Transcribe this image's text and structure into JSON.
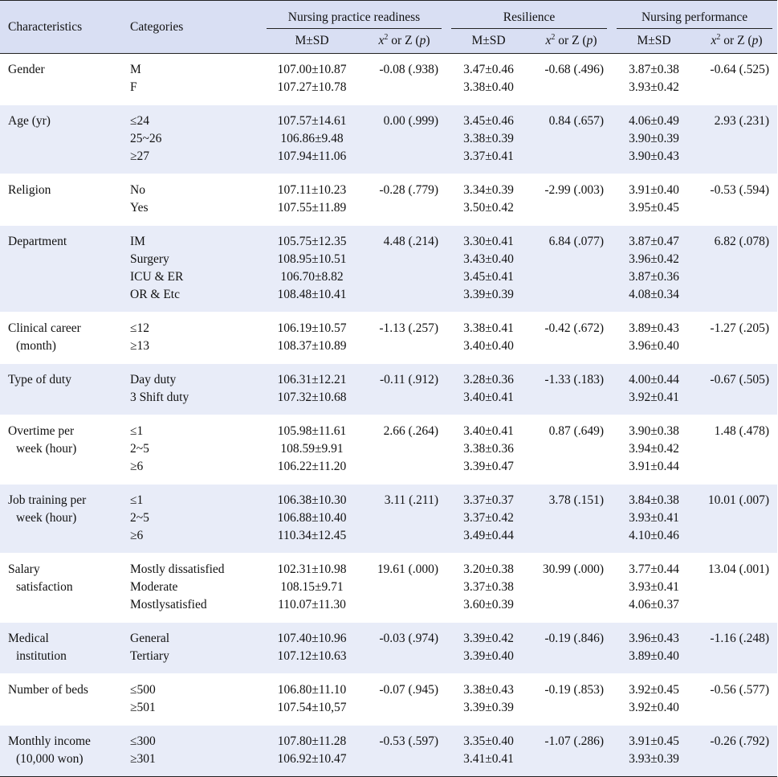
{
  "header": {
    "characteristics": "Characteristics",
    "categories": "Categories",
    "groups": [
      "Nursing practice readiness",
      "Resilience",
      "Nursing performance"
    ],
    "msd": "M±SD",
    "stat": "x² or Z (p)"
  },
  "rows": [
    {
      "char": [
        "Gender"
      ],
      "cats": [
        "M",
        "F"
      ],
      "npr": [
        "107.00±10.87",
        "107.27±10.78"
      ],
      "npr_stat": "-0.08 (.938)",
      "res": [
        "3.47±0.46",
        "3.38±0.40"
      ],
      "res_stat": "-0.68 (.496)",
      "np": [
        "3.87±0.38",
        "3.93±0.42"
      ],
      "np_stat": "-0.64 (.525)"
    },
    {
      "char": [
        "Age (yr)"
      ],
      "cats": [
        "≤24",
        "25~26",
        "≥27"
      ],
      "npr": [
        "107.57±14.61",
        "106.86±9.48",
        "107.94±11.06"
      ],
      "npr_stat": "0.00 (.999)",
      "res": [
        "3.45±0.46",
        "3.38±0.39",
        "3.37±0.41"
      ],
      "res_stat": "0.84 (.657)",
      "np": [
        "4.06±0.49",
        "3.90±0.39",
        "3.90±0.43"
      ],
      "np_stat": "2.93 (.231)"
    },
    {
      "char": [
        "Religion"
      ],
      "cats": [
        "No",
        "Yes"
      ],
      "npr": [
        "107.11±10.23",
        "107.55±11.89"
      ],
      "npr_stat": "-0.28 (.779)",
      "res": [
        "3.34±0.39",
        "3.50±0.42"
      ],
      "res_stat": "-2.99 (.003)",
      "np": [
        "3.91±0.40",
        "3.95±0.45"
      ],
      "np_stat": "-0.53 (.594)"
    },
    {
      "char": [
        "Department"
      ],
      "cats": [
        "IM",
        "Surgery",
        "ICU & ER",
        "OR & Etc"
      ],
      "npr": [
        "105.75±12.35",
        "108.95±10.51",
        "106.70±8.82",
        "108.48±10.41"
      ],
      "npr_stat": "4.48 (.214)",
      "res": [
        "3.30±0.41",
        "3.43±0.40",
        "3.45±0.41",
        "3.39±0.39"
      ],
      "res_stat": "6.84 (.077)",
      "np": [
        "3.87±0.47",
        "3.96±0.42",
        "3.87±0.36",
        "4.08±0.34"
      ],
      "np_stat": "6.82 (.078)"
    },
    {
      "char": [
        "Clinical career",
        " (month)"
      ],
      "cats": [
        "≤12",
        "≥13"
      ],
      "npr": [
        "106.19±10.57",
        "108.37±10.89"
      ],
      "npr_stat": "-1.13 (.257)",
      "res": [
        "3.38±0.41",
        "3.40±0.40"
      ],
      "res_stat": "-0.42 (.672)",
      "np": [
        "3.89±0.43",
        "3.96±0.40"
      ],
      "np_stat": "-1.27 (.205)"
    },
    {
      "char": [
        "Type of duty"
      ],
      "cats": [
        "Day duty",
        "3 Shift duty"
      ],
      "npr": [
        "106.31±12.21",
        "107.32±10.68"
      ],
      "npr_stat": "-0.11 (.912)",
      "res": [
        "3.28±0.36",
        "3.40±0.41"
      ],
      "res_stat": "-1.33 (.183)",
      "np": [
        "4.00±0.44",
        "3.92±0.41"
      ],
      "np_stat": "-0.67 (.505)"
    },
    {
      "char": [
        "Overtime per",
        "  week (hour)"
      ],
      "cats": [
        "≤1",
        "2~5",
        "≥6"
      ],
      "npr": [
        "105.98±11.61",
        "108.59±9.91",
        "106.22±11.20"
      ],
      "npr_stat": "2.66 (.264)",
      "res": [
        "3.40±0.41",
        "3.38±0.36",
        "3.39±0.47"
      ],
      "res_stat": "0.87 (.649)",
      "np": [
        "3.90±0.38",
        "3.94±0.42",
        "3.91±0.44"
      ],
      "np_stat": "1.48 (.478)"
    },
    {
      "char": [
        "Job training per",
        "  week (hour)"
      ],
      "cats": [
        "≤1",
        "2~5",
        "≥6"
      ],
      "npr": [
        "106.38±10.30",
        "106.88±10.40",
        "110.34±12.45"
      ],
      "npr_stat": "3.11 (.211)",
      "res": [
        "3.37±0.37",
        "3.37±0.42",
        "3.49±0.44"
      ],
      "res_stat": "3.78 (.151)",
      "np": [
        "3.84±0.38",
        "3.93±0.41",
        "4.10±0.46"
      ],
      "np_stat": "10.01 (.007)"
    },
    {
      "char": [
        "Salary",
        "  satisfaction"
      ],
      "cats": [
        "Mostly dissatisfied",
        "Moderate",
        "Mostlysatisfied"
      ],
      "npr": [
        "102.31±10.98",
        "108.15±9.71",
        "110.07±11.30"
      ],
      "npr_stat": "19.61 (.000)",
      "res": [
        "3.20±0.38",
        "3.37±0.38",
        "3.60±0.39"
      ],
      "res_stat": "30.99 (.000)",
      "np": [
        "3.77±0.44",
        "3.93±0.41",
        "4.06±0.37"
      ],
      "np_stat": "13.04 (.001)"
    },
    {
      "char": [
        "Medical",
        "  institution"
      ],
      "cats": [
        "General",
        "Tertiary"
      ],
      "npr": [
        "107.40±10.96",
        "107.12±10.63"
      ],
      "npr_stat": "-0.03 (.974)",
      "res": [
        "3.39±0.42",
        "3.39±0.40"
      ],
      "res_stat": "-0.19 (.846)",
      "np": [
        "3.96±0.43",
        "3.89±0.40"
      ],
      "np_stat": "-1.16 (.248)"
    },
    {
      "char": [
        "Number of beds"
      ],
      "cats": [
        "≤500",
        "≥501"
      ],
      "npr": [
        "106.80±11.10",
        "107.54±10,57"
      ],
      "npr_stat": "-0.07 (.945)",
      "res": [
        "3.38±0.43",
        "3.39±0.39"
      ],
      "res_stat": "-0.19 (.853)",
      "np": [
        "3.92±0.45",
        "3.92±0.40"
      ],
      "np_stat": "-0.56 (.577)"
    },
    {
      "char": [
        "Monthly income",
        "  (10,000 won)"
      ],
      "cats": [
        "≤300",
        "≥301"
      ],
      "npr": [
        "107.80±11.28",
        "106.92±10.47"
      ],
      "npr_stat": "-0.53 (.597)",
      "res": [
        "3.35±0.40",
        "3.41±0.41"
      ],
      "res_stat": "-1.07 (.286)",
      "np": [
        "3.91±0.45",
        "3.93±0.39"
      ],
      "np_stat": "-0.26 (.792)"
    }
  ]
}
